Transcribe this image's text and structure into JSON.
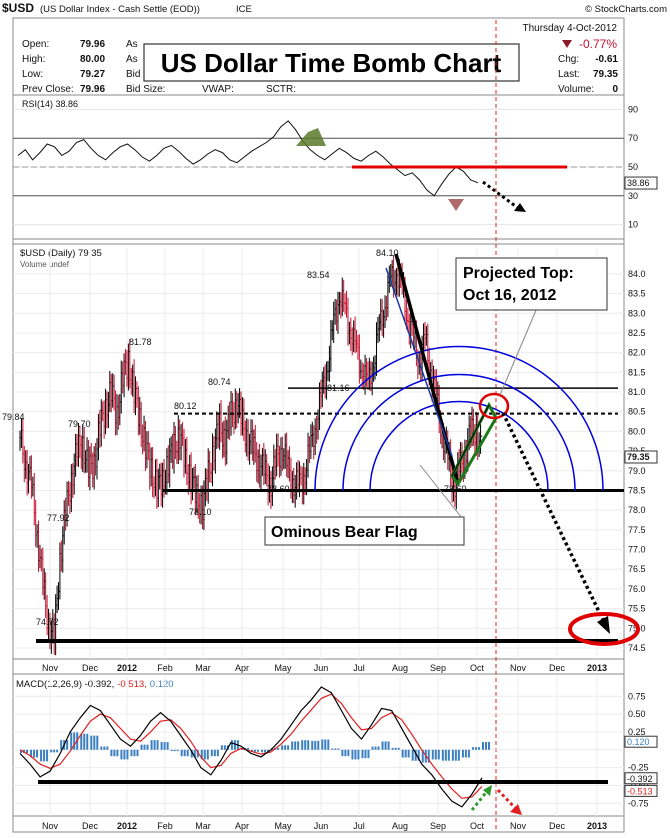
{
  "header": {
    "symbol": "$USD",
    "description": "(US Dollar Index - Cash Settle (EOD))",
    "exchange": "ICE",
    "copyright": "© StockCharts.com",
    "date": "Thursday  4-Oct-2012",
    "change_pct": "-0.77%",
    "stats_left": [
      {
        "label": "Open:",
        "value": "79.96"
      },
      {
        "label": "High:",
        "value": "80.00"
      },
      {
        "label": "Low:",
        "value": "79.27"
      },
      {
        "label": "Prev Close:",
        "value": "79.96"
      }
    ],
    "stats_mid": [
      "As",
      "As",
      "Bid",
      "Bid Size:"
    ],
    "stats_mid2": [
      "VWAP:",
      "SCTR:"
    ],
    "stats_right": [
      {
        "label": "Chg:",
        "value": "-0.61"
      },
      {
        "label": "Last:",
        "value": "79.35"
      },
      {
        "label": "Volume:",
        "value": "0"
      }
    ]
  },
  "title_banner": "US Dollar Time Bomb Chart",
  "annotations": {
    "projected_top_line1": "Projected Top:",
    "projected_top_line2": "Oct  16, 2012",
    "bear_flag": "Ominous Bear Flag"
  },
  "colors": {
    "price_up": "#000000",
    "price_down": "#c8102e",
    "arcs": "#0000dd",
    "macd_line": "#000000",
    "signal_line": "#e02020",
    "histogram": "#3a7fc1",
    "target_circle": "#e00000",
    "flag_fill": "#1a7a1a",
    "rsi_red_line": "#e00000"
  },
  "chart_data": [
    {
      "type": "line",
      "panel": "RSI",
      "title": "RSI(14) 38.86",
      "current": 38.86,
      "ylim": [
        0,
        100
      ],
      "y_ticks": [
        10,
        30,
        50,
        70,
        90
      ],
      "y_tick_labels": [
        "10",
        "30",
        "50",
        "70",
        "90"
      ],
      "reference_levels": [
        30,
        70
      ],
      "current_label": "38.86",
      "values": [
        58,
        62,
        55,
        60,
        66,
        64,
        58,
        61,
        67,
        69,
        63,
        58,
        55,
        60,
        64,
        66,
        62,
        57,
        54,
        58,
        63,
        65,
        61,
        56,
        52,
        55,
        59,
        62,
        60,
        55,
        53,
        57,
        61,
        64,
        67,
        71,
        78,
        82,
        76,
        68,
        62,
        58,
        55,
        59,
        63,
        60,
        56,
        54,
        58,
        61,
        57,
        52,
        48,
        44,
        46,
        41,
        34,
        30,
        38,
        45,
        50,
        47,
        41,
        39
      ],
      "horizontal_line_label": "",
      "horizontal_line_value": 50
    },
    {
      "type": "line",
      "panel": "Price",
      "title": "$USD (Daily) 79.35",
      "legend": "Volume undef",
      "x_labels": [
        "Nov",
        "Dec",
        "2012",
        "Feb",
        "Mar",
        "Apr",
        "May",
        "Jun",
        "Jul",
        "Aug",
        "Sep",
        "Oct",
        "Nov",
        "Dec",
        "2013"
      ],
      "ylim": [
        74.5,
        84.2
      ],
      "y_ticks": [
        74.5,
        75.0,
        75.5,
        76.0,
        76.5,
        77.0,
        77.5,
        78.0,
        78.5,
        79.0,
        79.5,
        80.0,
        80.5,
        81.0,
        81.5,
        82.0,
        82.5,
        83.0,
        83.5,
        84.0
      ],
      "y_tick_labels": [
        "74.5",
        "75.0",
        "75.5",
        "76.0",
        "76.5",
        "77.0",
        "77.5",
        "78.0",
        "78.5",
        "79.0",
        "79.5",
        "80.0",
        "80.5",
        "81.0",
        "81.5",
        "82.0",
        "82.5",
        "83.0",
        "83.5",
        "84.0"
      ],
      "last_label": "79.35",
      "last": 79.35,
      "close": [
        79.84,
        79.2,
        78.6,
        77.4,
        76.1,
        75.1,
        74.72,
        76.8,
        77.92,
        78.8,
        79.5,
        79.7,
        79.0,
        79.2,
        80.1,
        80.6,
        81.0,
        80.4,
        81.4,
        81.78,
        81.0,
        80.3,
        79.6,
        79.0,
        78.6,
        78.7,
        79.2,
        79.6,
        79.9,
        79.2,
        78.8,
        78.3,
        78.1,
        78.9,
        79.6,
        80.12,
        79.8,
        80.4,
        80.74,
        80.2,
        79.8,
        79.5,
        79.2,
        78.9,
        78.7,
        79.3,
        79.6,
        79.0,
        78.7,
        78.6,
        79.0,
        79.6,
        80.3,
        81.0,
        81.8,
        82.7,
        83.54,
        83.0,
        82.6,
        82.0,
        81.6,
        81.16,
        81.8,
        82.6,
        83.3,
        83.8,
        84.1,
        83.6,
        82.9,
        82.3,
        81.8,
        82.3,
        81.6,
        80.8,
        80.0,
        79.3,
        78.6,
        79.0,
        79.5,
        79.9,
        80.1,
        79.35
      ],
      "price_labels": [
        {
          "text": "79.84",
          "value": 79.84
        },
        {
          "text": "74.72",
          "value": 74.72
        },
        {
          "text": "77.92",
          "value": 77.92
        },
        {
          "text": "79.70",
          "value": 79.7
        },
        {
          "text": "81.78",
          "value": 81.78
        },
        {
          "text": "78.10",
          "value": 78.1
        },
        {
          "text": "80.12",
          "value": 80.12
        },
        {
          "text": "80.74",
          "value": 80.74
        },
        {
          "text": "78.60",
          "value": 78.6
        },
        {
          "text": "83.54",
          "value": 83.54
        },
        {
          "text": "81.16",
          "value": 81.16
        },
        {
          "text": "84.10",
          "value": 84.1
        },
        {
          "text": "78.60",
          "value": 78.6
        }
      ],
      "support_levels": [
        78.5,
        81.1,
        80.5,
        74.72
      ],
      "projection_target": 75.0
    },
    {
      "type": "line",
      "panel": "MACD",
      "title_prefix": "MACD(12,26,9) -0.392,",
      "title_signal": "-0.513,",
      "title_hist": "0.120",
      "ylim": [
        -0.9,
        0.95
      ],
      "y_ticks": [
        -0.75,
        -0.5,
        -0.25,
        0,
        0.25,
        0.5,
        0.75
      ],
      "y_tick_labels": [
        "-0.75",
        "-0.50",
        "-0.25",
        "",
        "0.25",
        "0.50",
        "0.75"
      ],
      "right_labels": [
        "0.120",
        "-0.392",
        "-0.513"
      ],
      "macd": [
        -0.05,
        -0.2,
        -0.38,
        -0.3,
        -0.05,
        0.25,
        0.45,
        0.62,
        0.55,
        0.35,
        0.15,
        0.05,
        0.2,
        0.4,
        0.52,
        0.4,
        0.2,
        0.0,
        -0.25,
        -0.35,
        -0.15,
        0.1,
        0.05,
        -0.05,
        -0.1,
        0.0,
        0.15,
        0.35,
        0.55,
        0.7,
        0.88,
        0.8,
        0.55,
        0.3,
        0.15,
        0.35,
        0.58,
        0.55,
        0.3,
        0.05,
        -0.2,
        -0.35,
        -0.55,
        -0.72,
        -0.8,
        -0.62,
        -0.392
      ],
      "signal": [
        0.0,
        -0.08,
        -0.2,
        -0.26,
        -0.2,
        -0.02,
        0.2,
        0.4,
        0.5,
        0.45,
        0.3,
        0.15,
        0.12,
        0.25,
        0.4,
        0.42,
        0.3,
        0.12,
        -0.1,
        -0.25,
        -0.22,
        -0.05,
        0.02,
        -0.02,
        -0.06,
        -0.03,
        0.08,
        0.22,
        0.4,
        0.56,
        0.72,
        0.78,
        0.65,
        0.45,
        0.28,
        0.3,
        0.45,
        0.52,
        0.42,
        0.22,
        0.0,
        -0.2,
        -0.38,
        -0.55,
        -0.68,
        -0.66,
        -0.513
      ],
      "x_labels": [
        "Nov",
        "Dec",
        "2012",
        "Feb",
        "Mar",
        "Apr",
        "May",
        "Jun",
        "Jul",
        "Aug",
        "Sep",
        "Oct",
        "Nov",
        "Dec",
        "2013"
      ]
    }
  ]
}
